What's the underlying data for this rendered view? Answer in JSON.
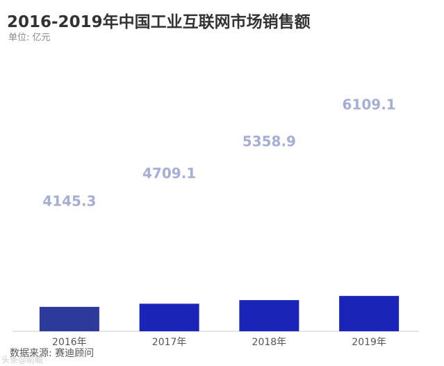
{
  "header": {
    "title": "2016-2019年中国工业互联网市场销售额",
    "subtitle": "单位: 亿元"
  },
  "footer": {
    "source": "数据来源: 赛迪顾问",
    "watermark": "头条@前瞻"
  },
  "colors": {
    "bar": "#1a25b8",
    "bar_first": "#2b3a9b",
    "data_label": "#a6aed4",
    "axis": "#cccccc",
    "tick_label": "#555555"
  },
  "chart_data": {
    "type": "bar",
    "title": "2016-2019年中国工业互联网市场销售额",
    "ylabel": "",
    "xlabel": "",
    "categories": [
      "2016年",
      "2017年",
      "2018年",
      "2019年"
    ],
    "values": [
      4145.3,
      4709.1,
      5358.9,
      6109.1
    ],
    "value_labels": [
      "4145.3",
      "4709.1",
      "5358.9",
      "6109.1"
    ],
    "grid": false,
    "legend": "none"
  }
}
